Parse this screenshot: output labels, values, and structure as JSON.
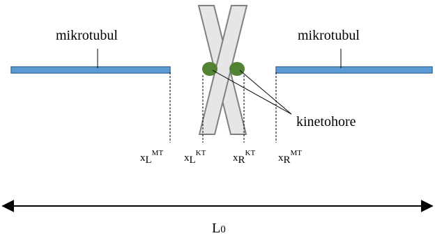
{
  "labels": {
    "microtubule_left": "mikrotubul",
    "microtubule_right": "mikrotubul",
    "kinetochore": "kinetohore",
    "length": "L",
    "length_sub": "0"
  },
  "positions": [
    {
      "base": "x",
      "sub": "L",
      "sup": "MT"
    },
    {
      "base": "x",
      "sub": "L",
      "sup": "KT"
    },
    {
      "base": "x",
      "sub": "R",
      "sup": "KT"
    },
    {
      "base": "x",
      "sub": "R",
      "sup": "MT"
    }
  ],
  "colors": {
    "microtubule_fill": "#5b9bd5",
    "microtubule_stroke": "#41719c",
    "chromosome_fill": "#e6e6e6",
    "chromosome_stroke": "#808080",
    "kinetochore_fill": "#548235",
    "line": "#000000"
  }
}
